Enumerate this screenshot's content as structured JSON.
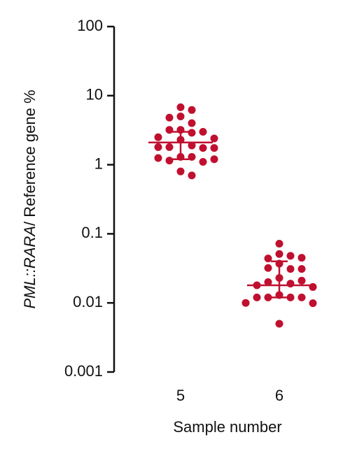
{
  "chart_data": {
    "type": "dot",
    "ylabel": {
      "italic": "PML::RARA",
      "rest": "/ Reference gene %"
    },
    "xlabel": "Sample number",
    "categories": [
      "5",
      "6"
    ],
    "values": [
      [
        6.8,
        6.2,
        5.0,
        4.8,
        4.0,
        3.2,
        2.9,
        3.2,
        3.0,
        2.5,
        2.3,
        2.4,
        1.9,
        1.8,
        1.75,
        1.8,
        1.75,
        1.3,
        1.3,
        1.15,
        1.1,
        1.25,
        1.2,
        0.8,
        0.7
      ],
      [
        0.072,
        0.051,
        0.048,
        0.044,
        0.045,
        0.037,
        0.031,
        0.032,
        0.031,
        0.023,
        0.019,
        0.02,
        0.021,
        0.018,
        0.017,
        0.013,
        0.012,
        0.012,
        0.012,
        0.012,
        0.0099,
        0.01,
        0.005
      ]
    ],
    "medians": [
      2.1,
      0.018
    ],
    "error_upper": [
      3.0,
      0.04
    ],
    "error_lower": [
      1.2,
      0.012
    ],
    "color": "#c0102f",
    "ylog": true,
    "ylim": [
      0.001,
      100
    ],
    "yticks": [
      100,
      10,
      1,
      0.1,
      0.01,
      0.001
    ]
  }
}
